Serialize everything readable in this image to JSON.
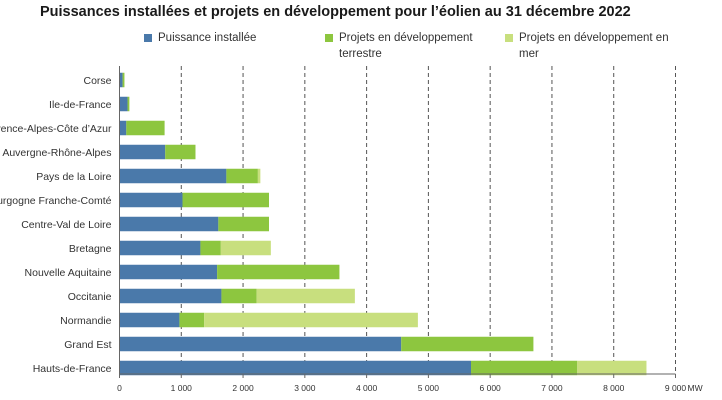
{
  "colors": {
    "installed": "#4a79aa",
    "onshore": "#8dc63f",
    "offshore": "#c8df7e",
    "grid": "#555555",
    "axis": "#666666",
    "text": "#333333"
  },
  "chart_data": {
    "type": "bar",
    "orientation": "horizontal",
    "stacked": true,
    "title": "Puissances installées et projets en développement pour l’éolien au 31 décembre 2022",
    "xlabel": "",
    "ylabel": "",
    "x_unit": "MW",
    "xlim": [
      0,
      9000
    ],
    "x_ticks": [
      0,
      1000,
      2000,
      3000,
      4000,
      5000,
      6000,
      7000,
      8000,
      9000
    ],
    "x_tick_labels": [
      "0",
      "1 000",
      "2 000",
      "3 000",
      "4 000",
      "5 000",
      "6 000",
      "7 000",
      "8 000",
      "9 000"
    ],
    "grid": "vertical dashed",
    "legend_position": "top",
    "categories": [
      "Corse",
      "Ile-de-France",
      "Provence-Alpes-Côte d’Azur",
      "Auvergne-Rhône-Alpes",
      "Pays de la Loire",
      "Bourgogne Franche-Comté",
      "Centre-Val de Loire",
      "Bretagne",
      "Nouvelle Aquitaine",
      "Occitanie",
      "Normandie",
      "Grand Est",
      "Hauts-de-France"
    ],
    "series": [
      {
        "name": "Puissance installée",
        "color_key": "installed",
        "values": [
          50,
          130,
          110,
          740,
          1730,
          1020,
          1600,
          1310,
          1580,
          1650,
          970,
          4560,
          5690
        ]
      },
      {
        "name": "Projets en développement terrestre",
        "color_key": "onshore",
        "values": [
          30,
          30,
          620,
          490,
          510,
          1400,
          820,
          330,
          1980,
          570,
          400,
          2140,
          1720
        ]
      },
      {
        "name": "Projets en développement en mer",
        "color_key": "offshore",
        "values": [
          0,
          0,
          0,
          0,
          40,
          0,
          0,
          810,
          0,
          1590,
          3460,
          0,
          1120
        ]
      }
    ]
  }
}
